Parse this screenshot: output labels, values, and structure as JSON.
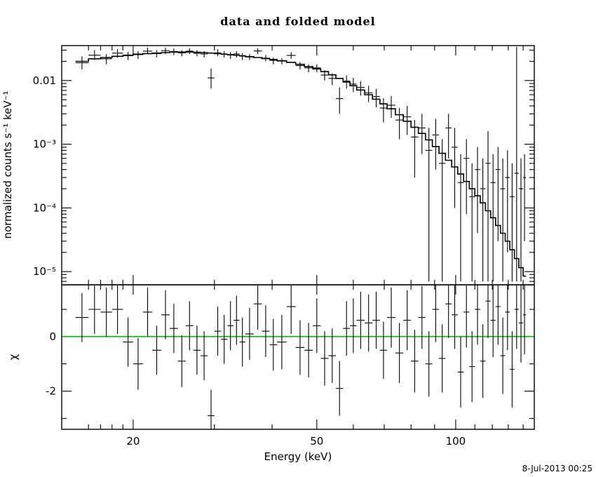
{
  "title": "data and folded model",
  "timestamp": "8-Jul-2013 00:25",
  "chart_data": [
    {
      "type": "scatter",
      "panel": "spectrum",
      "title": "data and folded model",
      "xlabel": "Energy (keV)",
      "ylabel": "normalized counts s⁻¹ keV⁻¹",
      "xscale": "log",
      "yscale": "log",
      "xlim": [
        14,
        148
      ],
      "ylim": [
        6.2e-06,
        0.0354
      ],
      "x_ticks": [
        {
          "v": 20,
          "t": "20"
        },
        {
          "v": 50,
          "t": "50"
        },
        {
          "v": 100,
          "t": "100"
        }
      ],
      "x_minor": [
        16,
        17,
        18,
        19,
        30,
        40,
        60,
        70,
        80,
        90,
        110,
        120,
        130,
        140
      ],
      "y_ticks": [
        {
          "v": 0.01,
          "t": "0.01"
        },
        {
          "v": 0.001,
          "t": "10⁻³"
        },
        {
          "v": 0.0001,
          "t": "10⁻⁴"
        },
        {
          "v": 1e-05,
          "t": "10⁻⁵"
        }
      ],
      "bin_edges": [
        15,
        16,
        17,
        18,
        19,
        20,
        21,
        22,
        23,
        24,
        25,
        26,
        27,
        28,
        29,
        30,
        31,
        32,
        33,
        34,
        35,
        36.5,
        38,
        39.5,
        41,
        43,
        45,
        47,
        49,
        51,
        53,
        55,
        57,
        59,
        61,
        63.5,
        66,
        68.5,
        71,
        74,
        77,
        80,
        83,
        86,
        89,
        92,
        95,
        98,
        101,
        104,
        107,
        110,
        113,
        116,
        119,
        122,
        125,
        128,
        131,
        134,
        137,
        140,
        142
      ],
      "model_values": [
        0.02,
        0.022,
        0.023,
        0.024,
        0.025,
        0.026,
        0.0265,
        0.027,
        0.0275,
        0.028,
        0.028,
        0.028,
        0.0278,
        0.0275,
        0.027,
        0.0265,
        0.026,
        0.0255,
        0.025,
        0.0245,
        0.0238,
        0.023,
        0.0222,
        0.0214,
        0.0205,
        0.0193,
        0.018,
        0.0166,
        0.0152,
        0.0138,
        0.0123,
        0.0108,
        0.0095,
        0.0083,
        0.0071,
        0.006,
        0.0051,
        0.0043,
        0.0036,
        0.0029,
        0.0023,
        0.00185,
        0.00148,
        0.00117,
        0.00092,
        0.00072,
        0.00056,
        0.00044,
        0.00034,
        0.00026,
        0.0002,
        0.000155,
        0.00012,
        9e-05,
        7e-05,
        5.3e-05,
        4e-05,
        3e-05,
        2.2e-05,
        1.6e-05,
        1.15e-05,
        8.5e-06
      ],
      "rate": [
        0.019,
        0.025,
        0.022,
        0.027,
        0.0245,
        0.0255,
        0.029,
        0.0265,
        0.0295,
        0.0285,
        0.0272,
        0.029,
        0.0268,
        0.0262,
        0.011,
        0.0272,
        0.0258,
        0.0252,
        0.0262,
        0.0242,
        0.0235,
        0.0292,
        0.0225,
        0.0208,
        0.0202,
        0.0248,
        0.0172,
        0.0158,
        0.0158,
        0.0122,
        0.0108,
        0.0052,
        0.0098,
        0.0088,
        0.0078,
        0.0064,
        0.0056,
        0.0037,
        0.0041,
        0.0024,
        0.0027,
        0.0013,
        0.0018,
        0.0008,
        0.0014,
        0.0005,
        0.0018,
        0.0009,
        0.00025,
        0.0006,
        0.00015,
        0.0004,
        0.0002,
        0.0005,
        0.00025,
        0.0004,
        0.0002,
        0.0003,
        0.00015,
        0.00035,
        0.0002,
        0.0003
      ],
      "rate_lo": [
        0.015,
        0.021,
        0.018,
        0.023,
        0.021,
        0.022,
        0.026,
        0.023,
        0.026,
        0.025,
        0.024,
        0.026,
        0.024,
        0.023,
        0.0075,
        0.024,
        0.023,
        0.022,
        0.023,
        0.021,
        0.021,
        0.026,
        0.02,
        0.018,
        0.018,
        0.022,
        0.015,
        0.0135,
        0.0135,
        0.01,
        0.0085,
        0.003,
        0.0075,
        0.0066,
        0.0058,
        0.0046,
        0.0038,
        0.0022,
        0.0026,
        0.0012,
        0.0014,
        0.0003,
        0.0007,
        7e-06,
        0.0004,
        7e-06,
        0.0006,
        0.0001,
        7e-06,
        8e-05,
        7e-06,
        4e-05,
        7e-06,
        7e-06,
        7e-06,
        3e-05,
        7e-06,
        2e-05,
        7e-06,
        7e-06,
        7e-06,
        3e-05
      ],
      "rate_hi": [
        0.024,
        0.03,
        0.026,
        0.031,
        0.028,
        0.029,
        0.033,
        0.03,
        0.033,
        0.032,
        0.03,
        0.032,
        0.03,
        0.029,
        0.0155,
        0.031,
        0.029,
        0.028,
        0.029,
        0.027,
        0.026,
        0.032,
        0.025,
        0.023,
        0.0225,
        0.028,
        0.0195,
        0.018,
        0.018,
        0.0145,
        0.013,
        0.0078,
        0.012,
        0.011,
        0.0098,
        0.0083,
        0.0074,
        0.0053,
        0.0057,
        0.0037,
        0.004,
        0.0024,
        0.003,
        0.0018,
        0.0025,
        0.0012,
        0.003,
        0.0018,
        0.0007,
        0.0012,
        0.0005,
        0.0009,
        0.0006,
        0.0016,
        0.0007,
        0.0009,
        0.0006,
        0.0008,
        0.0005,
        0.034,
        0.0006,
        0.0007
      ]
    },
    {
      "type": "scatter",
      "panel": "residuals",
      "ylabel": "χ",
      "ylim": [
        -3.4,
        1.9
      ],
      "y_ticks": [
        {
          "v": 0,
          "t": "0"
        },
        {
          "v": -2,
          "t": "-2"
        }
      ],
      "y_minor": [
        -3,
        -1,
        1
      ],
      "zero_line_color": "#00c800",
      "chi": [
        0.7,
        1.0,
        0.9,
        1.0,
        -0.2,
        -1.0,
        0.9,
        -0.5,
        0.8,
        0.3,
        -0.9,
        0.4,
        -0.5,
        -0.7,
        -2.9,
        0.2,
        -0.1,
        0.4,
        0.6,
        -0.2,
        0.1,
        1.2,
        0.2,
        -0.3,
        -0.2,
        1.1,
        -0.4,
        -0.5,
        0.4,
        -0.8,
        -0.7,
        -1.9,
        0.3,
        0.4,
        0.6,
        0.5,
        0.6,
        -0.5,
        0.7,
        -0.6,
        0.6,
        -0.9,
        0.7,
        -1.0,
        1.0,
        -0.8,
        1.2,
        0.8,
        -1.3,
        0.9,
        -1.1,
        1.0,
        -0.9,
        1.3,
        0.6,
        1.1,
        -0.7,
        0.9,
        -1.2,
        1.0,
        0.5,
        0.8
      ],
      "err": [
        0.9,
        0.9,
        0.9,
        0.9,
        0.9,
        0.95,
        0.9,
        0.9,
        0.9,
        0.9,
        0.95,
        0.9,
        0.9,
        0.9,
        0.95,
        0.9,
        0.9,
        0.9,
        0.9,
        0.9,
        0.95,
        0.95,
        0.95,
        0.95,
        1.0,
        1.0,
        1.0,
        1.0,
        1.0,
        1.0,
        1.0,
        1.0,
        1.0,
        1.0,
        1.05,
        1.05,
        1.05,
        1.05,
        1.1,
        1.1,
        1.1,
        1.15,
        1.15,
        1.2,
        1.2,
        1.25,
        1.25,
        1.25,
        1.3,
        1.3,
        1.3,
        1.3,
        1.35,
        1.35,
        1.35,
        1.4,
        1.4,
        1.4,
        1.4,
        1.45,
        1.45,
        1.45
      ]
    }
  ]
}
